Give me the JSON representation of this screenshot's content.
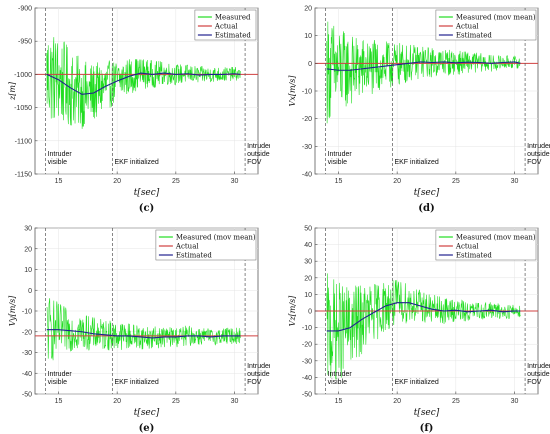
{
  "chart_data": [
    {
      "panel": "(c)",
      "type": "line",
      "ylabel": "z[m]",
      "xlabel": "t[sec]",
      "xlim": [
        13,
        32
      ],
      "ylim": [
        -1150,
        -900
      ],
      "xticks": [
        15,
        20,
        25,
        30
      ],
      "yticks": [
        -900,
        -950,
        -1000,
        -1050,
        -1100,
        -1150
      ],
      "grid": true,
      "legend_position": "top-right",
      "legend": [
        "Measured",
        "Actual",
        "Estimated"
      ],
      "colors": {
        "measured": "#22dd22",
        "actual": "#d04040",
        "estimated": "#202090"
      },
      "actual_value": -1000,
      "noise_envelope": {
        "x": [
          14,
          16,
          18,
          20,
          22,
          24,
          26,
          28,
          30.5
        ],
        "halfwidth": [
          75,
          60,
          45,
          32,
          24,
          18,
          14,
          12,
          10
        ]
      },
      "estimated": {
        "x": [
          14,
          15,
          16,
          17,
          18,
          19,
          20,
          21,
          22,
          23,
          24,
          25,
          26,
          27,
          28,
          29,
          30,
          30.5
        ],
        "y": [
          -1000,
          -1008,
          -1020,
          -1030,
          -1028,
          -1018,
          -1010,
          -1003,
          -998,
          -1000,
          -998,
          -1000,
          -999,
          -1001,
          -1000,
          -1000,
          -999,
          -1000
        ]
      },
      "annotations": [
        {
          "x": 13.9,
          "text": [
            "Intruder",
            "visible"
          ]
        },
        {
          "x": 19.6,
          "text": [
            "EKF initialized"
          ]
        },
        {
          "x": 30.9,
          "text": [
            "Intruder",
            "outside",
            "FOV"
          ]
        }
      ]
    },
    {
      "panel": "(d)",
      "type": "line",
      "ylabel": "Vx[m/s]",
      "xlabel": "t[sec]",
      "xlim": [
        13,
        32
      ],
      "ylim": [
        -40,
        20
      ],
      "xticks": [
        15,
        20,
        25,
        30
      ],
      "yticks": [
        20,
        10,
        0,
        -10,
        -20,
        -30,
        -40
      ],
      "grid": true,
      "legend_position": "top-right",
      "legend": [
        "Measured (mov mean)",
        "Actual",
        "Estimated"
      ],
      "colors": {
        "measured": "#22dd22",
        "actual": "#d04040",
        "estimated": "#202090"
      },
      "actual_value": 0,
      "noise_envelope": {
        "x": [
          14,
          15,
          16,
          18,
          20,
          22,
          24,
          26,
          28,
          30.5
        ],
        "halfwidth": [
          20,
          16,
          13,
          10,
          8,
          6,
          5,
          4,
          3,
          2
        ]
      },
      "estimated": {
        "x": [
          14,
          15,
          16,
          17,
          18,
          19,
          20,
          21,
          22,
          23,
          24,
          25,
          26,
          27,
          28,
          29,
          30,
          30.5
        ],
        "y": [
          -2,
          -2.5,
          -2.5,
          -2,
          -1.5,
          -1,
          -0.5,
          0,
          0.5,
          0.3,
          0.5,
          0.2,
          0.4,
          0.3,
          0,
          0.3,
          0.5,
          0
        ]
      },
      "annotations": [
        {
          "x": 13.9,
          "text": [
            "Intruder",
            "visible"
          ]
        },
        {
          "x": 19.6,
          "text": [
            "EKF initialized"
          ]
        },
        {
          "x": 30.9,
          "text": [
            "Intruder",
            "outside",
            "FOV"
          ]
        }
      ]
    },
    {
      "panel": "(e)",
      "type": "line",
      "ylabel": "Vy[m/s]",
      "xlabel": "t[sec]",
      "xlim": [
        13,
        32
      ],
      "ylim": [
        -50,
        30
      ],
      "xticks": [
        15,
        20,
        25,
        30
      ],
      "yticks": [
        30,
        20,
        10,
        0,
        -10,
        -20,
        -30,
        -40,
        -50
      ],
      "grid": true,
      "legend_position": "top-right",
      "legend": [
        "Measured (mov mean)",
        "Actual",
        "Estimated"
      ],
      "colors": {
        "measured": "#22dd22",
        "actual": "#d04040",
        "estimated": "#202090"
      },
      "actual_value": -22,
      "noise_envelope": {
        "x": [
          14,
          15,
          16,
          18,
          20,
          22,
          24,
          26,
          28,
          30.5
        ],
        "halfwidth": [
          18,
          13,
          10,
          8,
          7,
          6,
          5,
          5,
          4,
          4
        ]
      },
      "estimated": {
        "x": [
          14,
          15,
          16,
          17,
          18,
          19,
          20,
          21,
          22,
          23,
          24,
          25,
          26,
          27,
          28,
          29,
          30,
          30.5
        ],
        "y": [
          -19,
          -19,
          -19.5,
          -20,
          -21,
          -21.5,
          -22,
          -22,
          -22.5,
          -23,
          -22.5,
          -22.5,
          -22,
          -22,
          -22.5,
          -22,
          -22,
          -22
        ]
      },
      "annotations": [
        {
          "x": 13.9,
          "text": [
            "Intruder",
            "visible"
          ]
        },
        {
          "x": 19.6,
          "text": [
            "EKF initialized"
          ]
        },
        {
          "x": 30.9,
          "text": [
            "Intruder",
            "outside",
            "FOV"
          ]
        }
      ]
    },
    {
      "panel": "(f)",
      "type": "line",
      "ylabel": "Vz[m/s]",
      "xlabel": "t[sec]",
      "xlim": [
        13,
        32
      ],
      "ylim": [
        -50,
        50
      ],
      "xticks": [
        15,
        20,
        25,
        30
      ],
      "yticks": [
        50,
        40,
        30,
        20,
        10,
        0,
        -10,
        -20,
        -30,
        -40,
        -50
      ],
      "grid": true,
      "legend_position": "top-right",
      "legend": [
        "Measured (mov mean)",
        "Actual",
        "Estimated"
      ],
      "colors": {
        "measured": "#22dd22",
        "actual": "#d04040",
        "estimated": "#202090"
      },
      "actual_value": 0,
      "noise_envelope": {
        "x": [
          14,
          15,
          16,
          18,
          20,
          22,
          24,
          26,
          28,
          30.5
        ],
        "halfwidth": [
          35,
          30,
          25,
          18,
          14,
          10,
          8,
          6,
          5,
          4
        ]
      },
      "estimated": {
        "x": [
          14,
          15,
          16,
          17,
          18,
          19,
          20,
          21,
          22,
          23,
          24,
          25,
          26,
          27,
          28,
          29,
          30,
          30.5
        ],
        "y": [
          -12,
          -12,
          -10,
          -5,
          -1,
          3,
          5,
          5,
          3,
          1,
          0,
          0.5,
          -0.5,
          0,
          0.5,
          -0.5,
          0,
          0
        ]
      },
      "annotations": [
        {
          "x": 13.9,
          "text": [
            "Intruder",
            "visible"
          ]
        },
        {
          "x": 19.6,
          "text": [
            "EKF initialized"
          ]
        },
        {
          "x": 30.9,
          "text": [
            "Intruder",
            "outside",
            "FOV"
          ]
        }
      ]
    }
  ]
}
